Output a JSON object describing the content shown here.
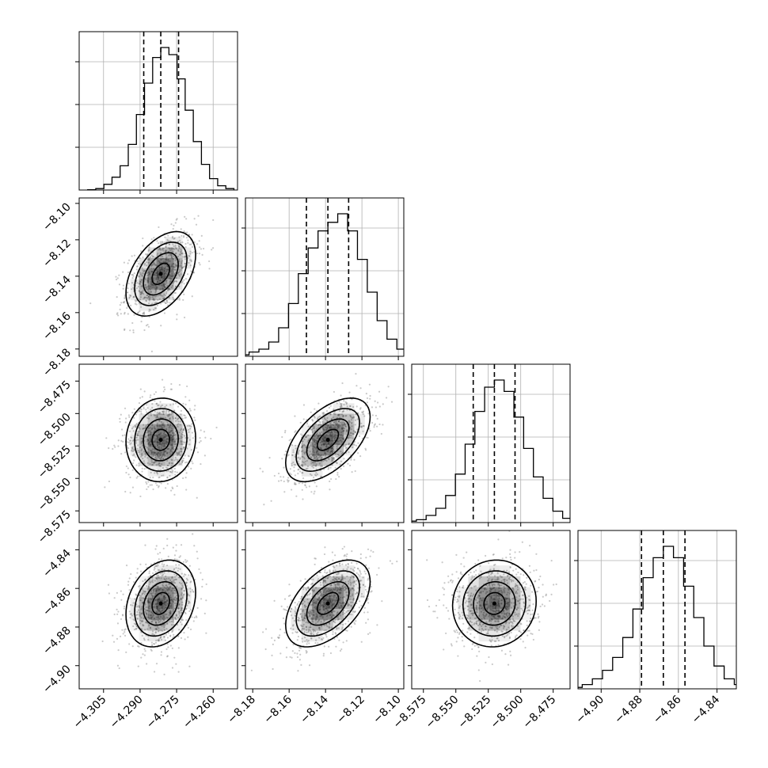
{
  "chart_data": {
    "type": "corner",
    "title": "",
    "grid": true,
    "colors": {
      "line": "#000000",
      "grid": "#b0b0b0",
      "points": "#666666",
      "density": "#000000"
    },
    "parameters": [
      {
        "range": [
          -4.315,
          -4.25
        ],
        "mean": -4.2815,
        "q16": -4.2885,
        "q84": -4.2742,
        "ticks": [
          -4.305,
          -4.29,
          -4.275,
          -4.26
        ],
        "tick_labels": [
          "−4.305",
          "−4.290",
          "−4.275",
          "−4.260"
        ]
      },
      {
        "range": [
          -8.184,
          -8.097
        ],
        "mean": -8.1387,
        "q16": -8.1505,
        "q84": -8.1273,
        "ticks": [
          -8.18,
          -8.16,
          -8.14,
          -8.12,
          -8.1
        ],
        "tick_labels": [
          "−8.18",
          "−8.16",
          "−8.14",
          "−8.12",
          "−8.10"
        ]
      },
      {
        "range": [
          -8.584,
          -8.462
        ],
        "mean": -8.5203,
        "q16": -8.5366,
        "q84": -8.5044,
        "ticks": [
          -8.575,
          -8.55,
          -8.525,
          -8.5,
          -8.475
        ],
        "tick_labels": [
          "−8.575",
          "−8.550",
          "−8.525",
          "−8.500",
          "−8.475"
        ]
      },
      {
        "range": [
          -4.912,
          -4.83
        ],
        "mean": -4.8678,
        "q16": -4.8791,
        "q84": -4.8566,
        "ticks": [
          -4.9,
          -4.88,
          -4.86,
          -4.84
        ],
        "tick_labels": [
          "−4.90",
          "−4.88",
          "−4.86",
          "−4.84"
        ]
      }
    ],
    "histograms": [
      [
        0.002,
        0.01,
        0.04,
        0.09,
        0.17,
        0.32,
        0.53,
        0.75,
        0.93,
        1.0,
        0.95,
        0.78,
        0.56,
        0.34,
        0.18,
        0.08,
        0.03,
        0.01
      ],
      [
        0.01,
        0.03,
        0.05,
        0.1,
        0.2,
        0.37,
        0.58,
        0.76,
        0.88,
        0.94,
        1.0,
        0.88,
        0.68,
        0.45,
        0.25,
        0.12,
        0.05,
        0.02
      ],
      [
        0.01,
        0.02,
        0.05,
        0.1,
        0.19,
        0.34,
        0.55,
        0.78,
        0.95,
        1.0,
        0.92,
        0.74,
        0.52,
        0.32,
        0.17,
        0.08,
        0.03,
        0.01
      ],
      [
        0.01,
        0.03,
        0.07,
        0.13,
        0.22,
        0.36,
        0.56,
        0.78,
        0.92,
        1.0,
        0.92,
        0.72,
        0.5,
        0.3,
        0.16,
        0.07,
        0.03,
        0.01
      ]
    ],
    "correlations": [
      [
        1,
        0.45,
        0.05,
        0.25
      ],
      [
        0.45,
        1,
        0.55,
        0.5
      ],
      [
        0.05,
        0.55,
        1,
        0.05
      ],
      [
        0.25,
        0.5,
        0.05,
        1
      ]
    ],
    "contour_levels_sigma": [
      0.5,
      1.0,
      1.5,
      2.0
    ]
  }
}
